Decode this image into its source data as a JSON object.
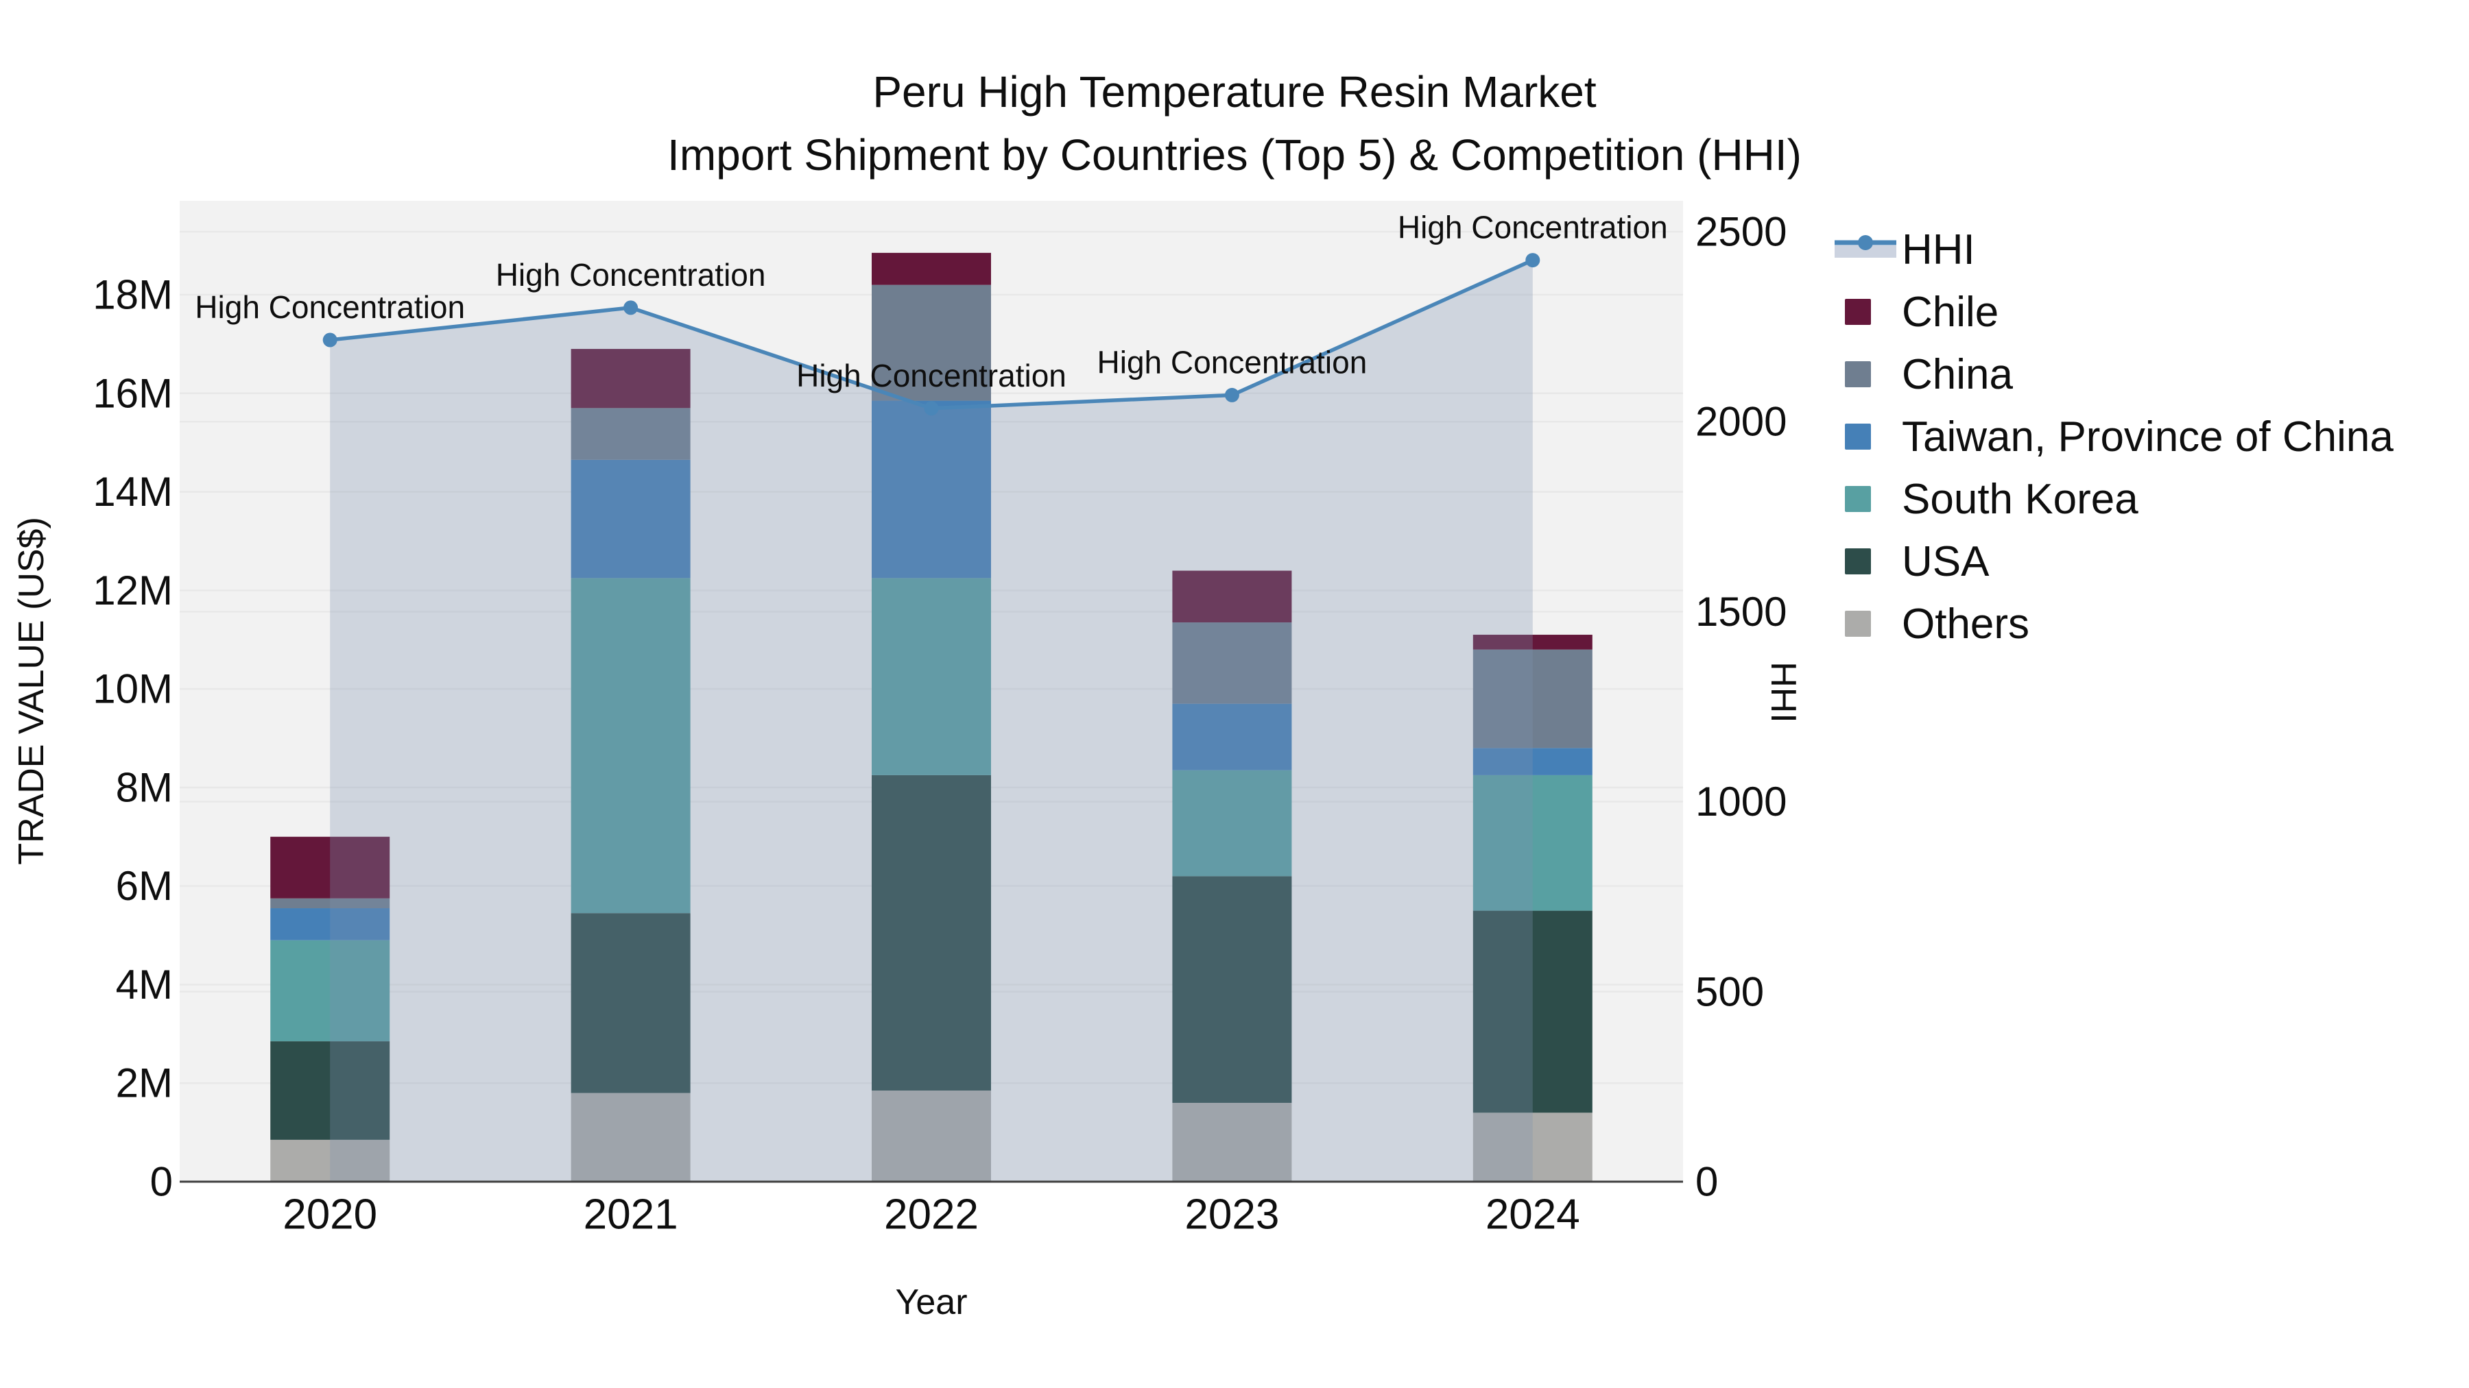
{
  "title": {
    "line1": "Peru High Temperature Resin Market",
    "line2": "Import Shipment by Countries (Top 5) & Competition (HHI)"
  },
  "axes": {
    "x": {
      "title": "Year",
      "ticks": [
        {
          "label": "2020",
          "value": 2020
        },
        {
          "label": "2021",
          "value": 2021
        },
        {
          "label": "2022",
          "value": 2022
        },
        {
          "label": "2023",
          "value": 2023
        },
        {
          "label": "2024",
          "value": 2024
        }
      ]
    },
    "y_left": {
      "title": "TRADE VALUE (US$)",
      "ticks": [
        {
          "label": "0",
          "value": 0
        },
        {
          "label": "2M",
          "value": 2
        },
        {
          "label": "4M",
          "value": 4
        },
        {
          "label": "6M",
          "value": 6
        },
        {
          "label": "8M",
          "value": 8
        },
        {
          "label": "10M",
          "value": 10
        },
        {
          "label": "12M",
          "value": 12
        },
        {
          "label": "14M",
          "value": 14
        },
        {
          "label": "16M",
          "value": 16
        },
        {
          "label": "18M",
          "value": 18
        }
      ]
    },
    "y_right": {
      "title": "HHI",
      "ticks": [
        {
          "label": "0",
          "value": 0
        },
        {
          "label": "500",
          "value": 500
        },
        {
          "label": "1000",
          "value": 1000
        },
        {
          "label": "1500",
          "value": 1500
        },
        {
          "label": "2000",
          "value": 2000
        },
        {
          "label": "2500",
          "value": 2500
        }
      ]
    }
  },
  "legend": [
    {
      "label": "HHI",
      "kind": "line-sample",
      "color": "#4a86b8",
      "fill_color": "#ccd3e0"
    },
    {
      "label": "Chile",
      "kind": "swatch",
      "color": "#64173a"
    },
    {
      "label": "China",
      "kind": "swatch",
      "color": "#6f7e90"
    },
    {
      "label": "Taiwan, Province of China",
      "kind": "swatch",
      "color": "#4580b7"
    },
    {
      "label": "South Korea",
      "kind": "swatch",
      "color": "#58a0a2"
    },
    {
      "label": "USA",
      "kind": "swatch",
      "color": "#2d4d4a"
    },
    {
      "label": "Others",
      "kind": "swatch",
      "color": "#acacaa"
    }
  ],
  "colors": {
    "plot_background": "#f2f2f2",
    "gridline": "#e8e8e8",
    "axis_line": "#3f3f3f",
    "hhi_line": "#4a86b8",
    "hhi_area_fill": "rgba(125,145,175,0.30)",
    "text": "#0e0e0e"
  },
  "chart_data": {
    "type": "combo: stacked-bar + line-area",
    "title": "Peru High Temperature Resin Market — Import Shipment by Countries (Top 5) & Competition (HHI)",
    "xlabel": "Year",
    "ylabel_left": "TRADE VALUE (US$)",
    "ylabel_right": "HHI",
    "categories": [
      "2020",
      "2021",
      "2022",
      "2023",
      "2024"
    ],
    "bar_unit": "US$ (millions)",
    "bar_stack_order_bottom_to_top": [
      "Others",
      "USA",
      "South Korea",
      "Taiwan, Province of China",
      "China",
      "Chile"
    ],
    "series": [
      {
        "name": "Others",
        "color": "#acacaa",
        "values": [
          0.85,
          1.8,
          1.85,
          1.6,
          1.4
        ]
      },
      {
        "name": "USA",
        "color": "#2d4d4a",
        "values": [
          2.0,
          3.65,
          6.4,
          4.6,
          4.1
        ]
      },
      {
        "name": "South Korea",
        "color": "#58a0a2",
        "values": [
          2.05,
          6.8,
          4.0,
          2.15,
          2.75
        ]
      },
      {
        "name": "Taiwan, Province of China",
        "color": "#4580b7",
        "values": [
          0.65,
          2.4,
          3.6,
          1.35,
          0.55
        ]
      },
      {
        "name": "China",
        "color": "#6f7e90",
        "values": [
          0.2,
          1.05,
          2.35,
          1.65,
          2.0
        ]
      },
      {
        "name": "Chile",
        "color": "#64173a",
        "values": [
          1.25,
          1.2,
          0.65,
          1.05,
          0.3
        ]
      }
    ],
    "bar_totals": [
      7.0,
      16.9,
      18.85,
      12.4,
      11.1
    ],
    "line": {
      "name": "HHI",
      "color": "#4a86b8",
      "values": [
        2215,
        2300,
        2035,
        2070,
        2425
      ],
      "area_fill": "rgba(125,145,175,0.30)",
      "annotations": [
        "High Concentration",
        "High Concentration",
        "High Concentration",
        "High Concentration",
        "High Concentration"
      ]
    },
    "ylim_left": [
      0,
      18
    ],
    "ylim_right": [
      0,
      2500
    ],
    "grid": "both-axes horizontal gridlines",
    "legend_position": "right"
  }
}
